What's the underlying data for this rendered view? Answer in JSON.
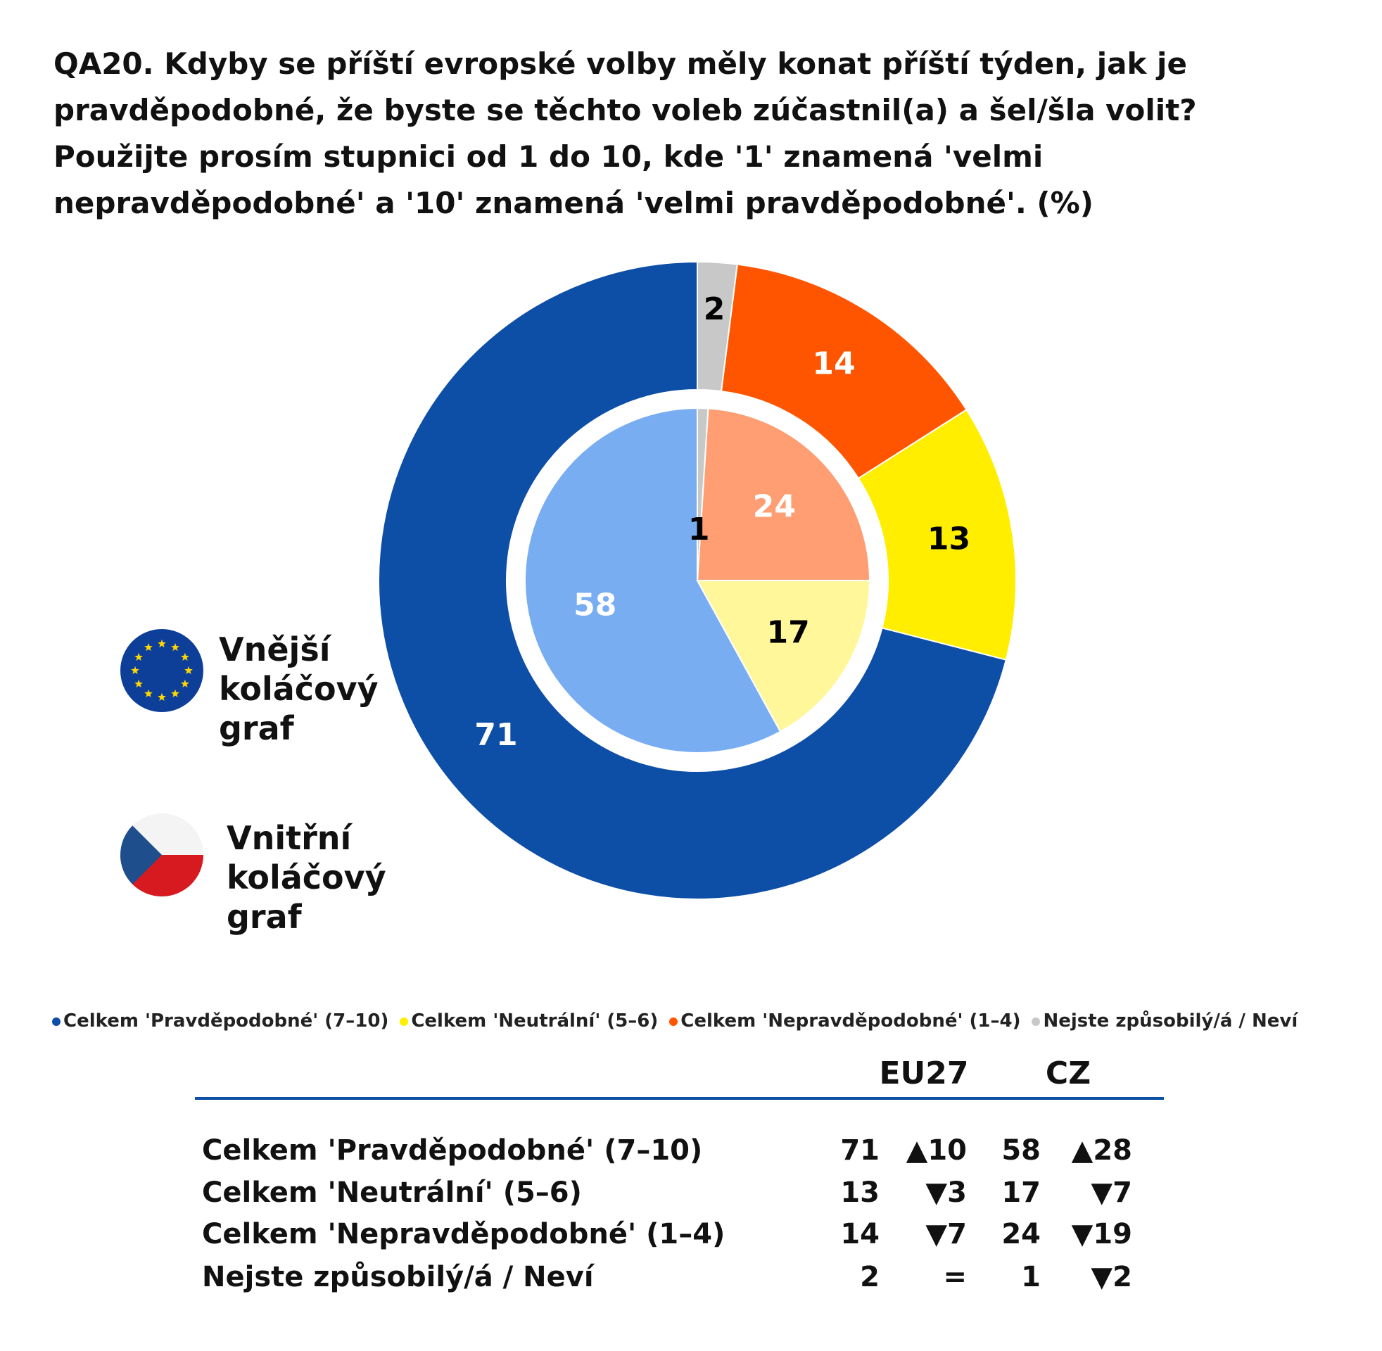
{
  "chart_data": {
    "type": "donut",
    "title": "QA20. Kdyby se příští evropské volby měly konat příští týden, jak je pravděpodobné, že byste se těchto voleb zúčastnil(a) a šel/šla volit? Použijte prosím stupnici od 1 do 10, kde '1' znamená 'velmi nepravděpodobné' a '10' znamená 'velmi pravděpodobné'. (%)",
    "categories": [
      "Celkem 'Pravděpodobné' (7–10)",
      "Celkem 'Neutrální' (5–6)",
      "Celkem 'Nepravděpodobné' (1–4)",
      "Nejste způsobilý/á / Neví"
    ],
    "series": [
      {
        "name": "Vnější koláčový graf",
        "values": [
          71,
          13,
          14,
          2
        ],
        "colors": [
          "#0d4ea6",
          "#ffee00",
          "#ff5500",
          "#c8c8c8"
        ],
        "label_colors": [
          "#ffffff",
          "#000000",
          "#ffffff",
          "#000000"
        ]
      },
      {
        "name": "Vnitřní koláčový graf",
        "values": [
          58,
          17,
          24,
          1
        ],
        "colors": [
          "#79adf2",
          "#fff799",
          "#ff9e73",
          "#c8c8c8"
        ],
        "label_colors": [
          "#ffffff",
          "#000000",
          "#ffffff",
          "#000000"
        ]
      }
    ]
  },
  "table": {
    "headers": [
      "EU27",
      "CZ"
    ],
    "changes": [
      [
        "▲10",
        "▲28"
      ],
      [
        "▼3",
        "▼7"
      ],
      [
        "▼7",
        "▼19"
      ],
      [
        "=",
        "▼2"
      ]
    ]
  }
}
